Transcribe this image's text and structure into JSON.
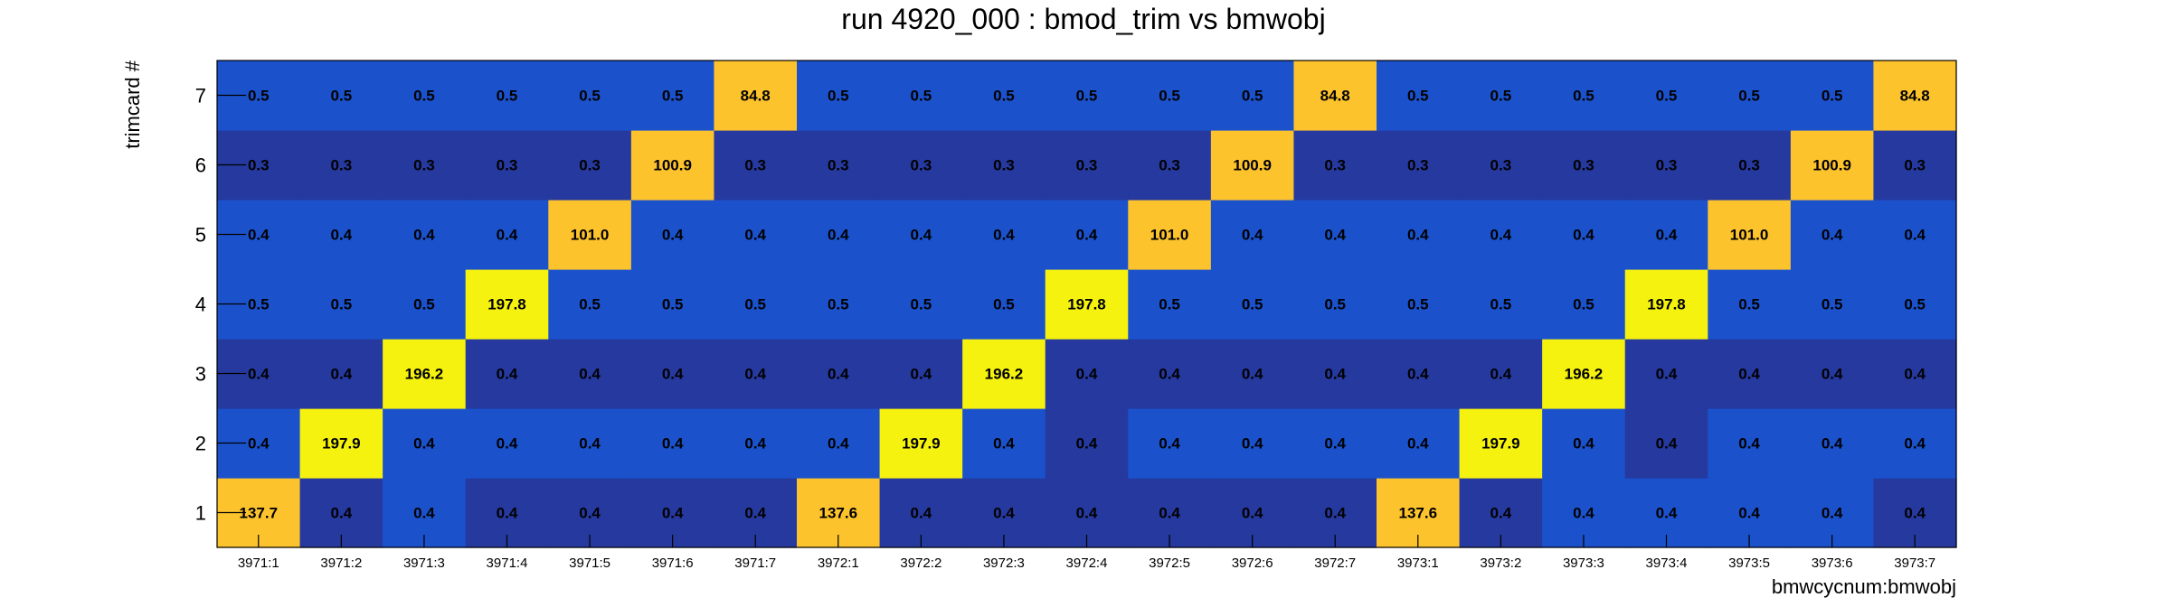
{
  "chart_data": {
    "type": "heatmap",
    "title": "run 4920_000 : bmod_trim vs bmwobj",
    "xlabel": "bmwcycnum:bmwobj",
    "ylabel": "trimcard #",
    "x_categories": [
      "3971:1",
      "3971:2",
      "3971:3",
      "3971:4",
      "3971:5",
      "3971:6",
      "3971:7",
      "3972:1",
      "3972:2",
      "3972:3",
      "3972:4",
      "3972:5",
      "3972:6",
      "3972:7",
      "3973:1",
      "3973:2",
      "3973:3",
      "3973:4",
      "3973:5",
      "3973:6",
      "3973:7"
    ],
    "y_categories": [
      "1",
      "2",
      "3",
      "4",
      "5",
      "6",
      "7"
    ],
    "values": [
      [
        137.7,
        0.4,
        0.4,
        0.4,
        0.4,
        0.4,
        0.4,
        137.6,
        0.4,
        0.4,
        0.4,
        0.4,
        0.4,
        0.4,
        137.6,
        0.4,
        0.4,
        0.4,
        0.4,
        0.4,
        0.4
      ],
      [
        0.4,
        197.9,
        0.4,
        0.4,
        0.4,
        0.4,
        0.4,
        0.4,
        197.9,
        0.4,
        0.4,
        0.4,
        0.4,
        0.4,
        0.4,
        197.9,
        0.4,
        0.4,
        0.4,
        0.4,
        0.4
      ],
      [
        0.4,
        0.4,
        196.2,
        0.4,
        0.4,
        0.4,
        0.4,
        0.4,
        0.4,
        196.2,
        0.4,
        0.4,
        0.4,
        0.4,
        0.4,
        0.4,
        196.2,
        0.4,
        0.4,
        0.4,
        0.4
      ],
      [
        0.5,
        0.5,
        0.5,
        197.8,
        0.5,
        0.5,
        0.5,
        0.5,
        0.5,
        0.5,
        197.8,
        0.5,
        0.5,
        0.5,
        0.5,
        0.5,
        0.5,
        197.8,
        0.5,
        0.5,
        0.5
      ],
      [
        0.4,
        0.4,
        0.4,
        0.4,
        101.0,
        0.4,
        0.4,
        0.4,
        0.4,
        0.4,
        0.4,
        101.0,
        0.4,
        0.4,
        0.4,
        0.4,
        0.4,
        0.4,
        101.0,
        0.4,
        0.4
      ],
      [
        0.3,
        0.3,
        0.3,
        0.3,
        0.3,
        100.9,
        0.3,
        0.3,
        0.3,
        0.3,
        0.3,
        0.3,
        100.9,
        0.3,
        0.3,
        0.3,
        0.3,
        0.3,
        0.3,
        100.9,
        0.3
      ],
      [
        0.5,
        0.5,
        0.5,
        0.5,
        0.5,
        0.5,
        84.8,
        0.5,
        0.5,
        0.5,
        0.5,
        0.5,
        0.5,
        84.8,
        0.5,
        0.5,
        0.5,
        0.5,
        0.5,
        0.5,
        84.8
      ]
    ],
    "value_labels": [
      [
        "137.7",
        "0.4",
        "0.4",
        "0.4",
        "0.4",
        "0.4",
        "0.4",
        "137.6",
        "0.4",
        "0.4",
        "0.4",
        "0.4",
        "0.4",
        "0.4",
        "137.6",
        "0.4",
        "0.4",
        "0.4",
        "0.4",
        "0.4",
        "0.4"
      ],
      [
        "0.4",
        "197.9",
        "0.4",
        "0.4",
        "0.4",
        "0.4",
        "0.4",
        "0.4",
        "197.9",
        "0.4",
        "0.4",
        "0.4",
        "0.4",
        "0.4",
        "0.4",
        "197.9",
        "0.4",
        "0.4",
        "0.4",
        "0.4",
        "0.4"
      ],
      [
        "0.4",
        "0.4",
        "196.2",
        "0.4",
        "0.4",
        "0.4",
        "0.4",
        "0.4",
        "0.4",
        "196.2",
        "0.4",
        "0.4",
        "0.4",
        "0.4",
        "0.4",
        "0.4",
        "196.2",
        "0.4",
        "0.4",
        "0.4",
        "0.4"
      ],
      [
        "0.5",
        "0.5",
        "0.5",
        "197.8",
        "0.5",
        "0.5",
        "0.5",
        "0.5",
        "0.5",
        "0.5",
        "197.8",
        "0.5",
        "0.5",
        "0.5",
        "0.5",
        "0.5",
        "0.5",
        "197.8",
        "0.5",
        "0.5",
        "0.5"
      ],
      [
        "0.4",
        "0.4",
        "0.4",
        "0.4",
        "101.0",
        "0.4",
        "0.4",
        "0.4",
        "0.4",
        "0.4",
        "0.4",
        "101.0",
        "0.4",
        "0.4",
        "0.4",
        "0.4",
        "0.4",
        "0.4",
        "101.0",
        "0.4",
        "0.4"
      ],
      [
        "0.3",
        "0.3",
        "0.3",
        "0.3",
        "0.3",
        "100.9",
        "0.3",
        "0.3",
        "0.3",
        "0.3",
        "0.3",
        "0.3",
        "100.9",
        "0.3",
        "0.3",
        "0.3",
        "0.3",
        "0.3",
        "0.3",
        "100.9",
        "0.3"
      ],
      [
        "0.5",
        "0.5",
        "0.5",
        "0.5",
        "0.5",
        "0.5",
        "84.8",
        "0.5",
        "0.5",
        "0.5",
        "0.5",
        "0.5",
        "0.5",
        "84.8",
        "0.5",
        "0.5",
        "0.5",
        "0.5",
        "0.5",
        "0.5",
        "84.8"
      ]
    ],
    "grid": false,
    "colors": {
      "low_dark": "#25399f",
      "low": "#1b52cc",
      "orange": "#fdc32d",
      "yellow": "#f6f20f"
    }
  }
}
